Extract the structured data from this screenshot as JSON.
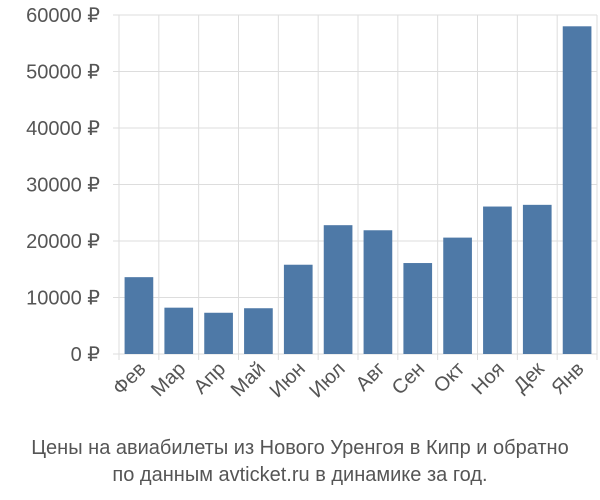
{
  "chart_data": {
    "type": "bar",
    "categories": [
      "Фев",
      "Мар",
      "Апр",
      "Май",
      "Июн",
      "Июл",
      "Авг",
      "Сен",
      "Окт",
      "Ноя",
      "Дек",
      "Янв"
    ],
    "values": [
      13600,
      8200,
      7300,
      8100,
      15800,
      22800,
      21900,
      16100,
      20600,
      26100,
      26400,
      58000
    ],
    "ylim": [
      0,
      60000
    ],
    "yticks": [
      0,
      10000,
      20000,
      30000,
      40000,
      50000,
      60000
    ],
    "ytick_labels": [
      "0 ₽",
      "10000 ₽",
      "20000 ₽",
      "30000 ₽",
      "40000 ₽",
      "50000 ₽",
      "60000 ₽"
    ],
    "bar_color": "#4e79a7",
    "grid": true,
    "legend": false,
    "caption_line1": "Цены на авиабилеты из Нового Уренгоя в Кипр и обратно",
    "caption_line2": "по данным avticket.ru в динамике за год."
  }
}
